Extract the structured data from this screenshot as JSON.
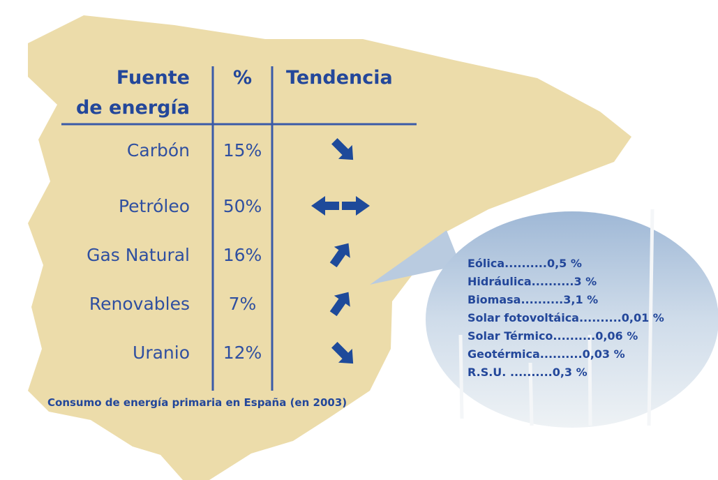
{
  "table": {
    "header": [
      [
        "Fuente",
        "de energía"
      ],
      "%",
      "Tendencia"
    ],
    "rows": [
      [
        "Carbón",
        "15%"
      ],
      [
        "Petróleo",
        "50%"
      ],
      [
        "Gas Natural",
        "16%"
      ],
      [
        "Renovables",
        "7%"
      ],
      [
        "Uranio",
        "12%"
      ]
    ]
  },
  "caption": "Consumo de energía primaria en España (en 2003)",
  "renewables": [
    "Eólica..........0,5 %",
    "Hidráulica..........3 %",
    "Biomasa..........3,1 %",
    "Solar fotovoltáica..........0,01 %",
    "Solar Térmico..........0,06 %",
    "Geotérmica..........0,03 %",
    "R.S.U.  ..........0,3 %"
  ]
}
